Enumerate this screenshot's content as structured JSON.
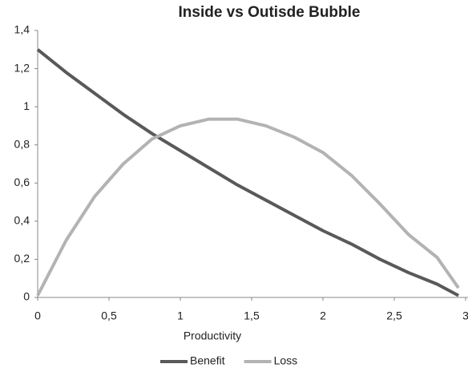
{
  "chart_data": {
    "type": "line",
    "title": "Inside vs Outisde Bubble",
    "x_label": "Productivity",
    "x": [
      0,
      0.2,
      0.4,
      0.6,
      0.8,
      1.0,
      1.2,
      1.4,
      1.6,
      1.8,
      2.0,
      2.2,
      2.4,
      2.6,
      2.8,
      2.95
    ],
    "series": [
      {
        "name": "Benefit",
        "color": "#595959",
        "values": [
          1.3,
          1.18,
          1.07,
          0.96,
          0.86,
          0.77,
          0.68,
          0.59,
          0.51,
          0.43,
          0.35,
          0.28,
          0.2,
          0.13,
          0.07,
          0.01
        ]
      },
      {
        "name": "Loss",
        "color": "#b3b3b3",
        "values": [
          0.01,
          0.3,
          0.53,
          0.7,
          0.83,
          0.9,
          0.935,
          0.935,
          0.9,
          0.84,
          0.76,
          0.64,
          0.49,
          0.33,
          0.21,
          0.05
        ]
      }
    ],
    "xlim": [
      0,
      3
    ],
    "xticks": [
      0,
      {
        "value": 0.5,
        "label": "0,5"
      },
      1,
      {
        "value": 1.5,
        "label": "1,5"
      },
      2,
      {
        "value": 2.5,
        "label": "2,5"
      },
      3
    ],
    "ylim": [
      0,
      1.4
    ],
    "yticks": [
      0,
      {
        "value": 0.2,
        "label": "0,2"
      },
      {
        "value": 0.4,
        "label": "0,4"
      },
      {
        "value": 0.6,
        "label": "0,6"
      },
      {
        "value": 0.8,
        "label": "0,8"
      },
      1,
      {
        "value": 1.2,
        "label": "1,2"
      },
      {
        "value": 1.4,
        "label": "1,4"
      }
    ],
    "grid": false,
    "legend": "bottom"
  }
}
